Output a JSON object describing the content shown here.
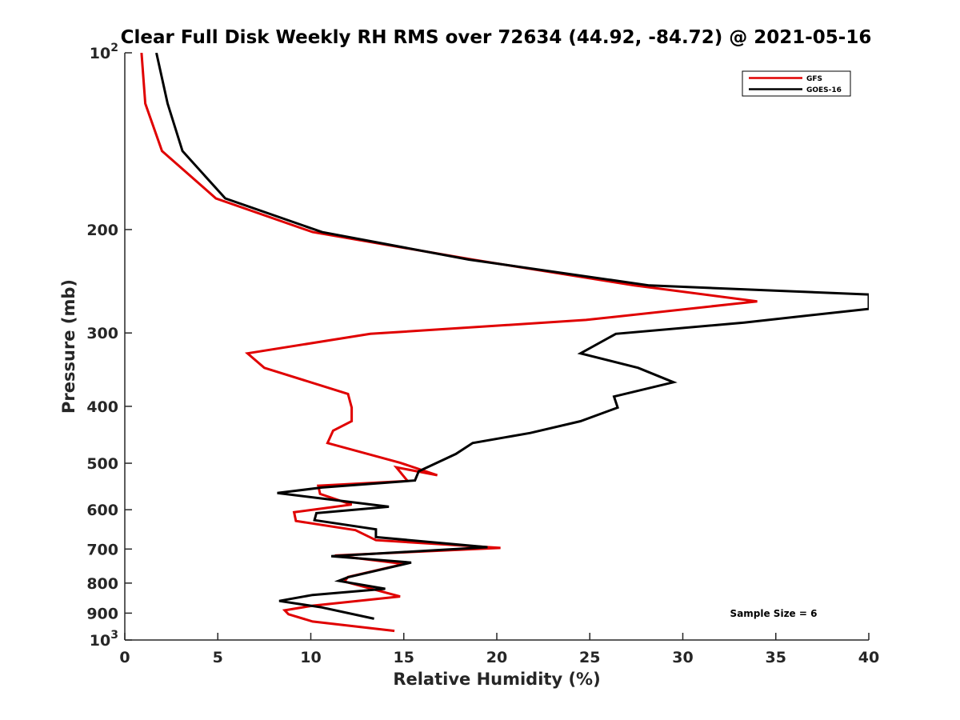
{
  "chart_data": {
    "type": "line",
    "title": "Clear Full Disk Weekly RH RMS over 72634 (44.92, -84.72) @ 2021-05-16",
    "xlabel": "Relative Humidity (%)",
    "ylabel": "Pressure (mb)",
    "xlim": [
      0,
      40
    ],
    "ylim": [
      100,
      1000
    ],
    "yscale": "log",
    "y_reversed": true,
    "x_ticks": [
      0,
      5,
      10,
      15,
      20,
      25,
      30,
      35,
      40
    ],
    "x_tick_labels": [
      "0",
      "5",
      "10",
      "15",
      "20",
      "25",
      "30",
      "35",
      "40"
    ],
    "y_ticks": [
      100,
      200,
      300,
      400,
      500,
      600,
      700,
      800,
      900,
      1000
    ],
    "y_tick_labels": [
      {
        "base": "10",
        "exp": "2"
      },
      {
        "base": "200",
        "exp": ""
      },
      {
        "base": "300",
        "exp": ""
      },
      {
        "base": "400",
        "exp": ""
      },
      {
        "base": "500",
        "exp": ""
      },
      {
        "base": "600",
        "exp": ""
      },
      {
        "base": "700",
        "exp": ""
      },
      {
        "base": "800",
        "exp": ""
      },
      {
        "base": "900",
        "exp": ""
      },
      {
        "base": "10",
        "exp": "3"
      }
    ],
    "legend_position": "top-right",
    "annotation": "Sample Size = 6",
    "series": [
      {
        "name": "GFS",
        "color": "#e00000",
        "x": [
          0.9,
          1.1,
          2.0,
          4.9,
          10.1,
          18.7,
          27.4,
          34.0,
          24.8,
          13.2,
          6.6,
          7.5,
          12.0,
          12.2,
          12.2,
          11.2,
          10.9,
          14.8,
          16.8,
          14.6,
          15.2,
          10.4,
          10.5,
          12.2,
          9.1,
          9.2,
          12.4,
          13.5,
          20.2,
          11.3,
          15.0,
          12.0,
          11.8,
          14.8,
          10.1,
          8.6,
          8.8,
          10.1,
          14.5
        ],
        "y": [
          100,
          122,
          147,
          177,
          202,
          225,
          249,
          265,
          285,
          301,
          325,
          344,
          381,
          402,
          424,
          440,
          462,
          499,
          524,
          508,
          536,
          546,
          564,
          588,
          606,
          627,
          650,
          676,
          697,
          718,
          742,
          781,
          795,
          843,
          874,
          890,
          904,
          930,
          965
        ]
      },
      {
        "name": "GOES-16",
        "color": "#000000",
        "x": [
          1.7,
          2.3,
          3.1,
          5.4,
          10.6,
          18.5,
          28.2,
          40.0,
          40.0,
          33.3,
          26.4,
          24.5,
          27.6,
          29.5,
          26.3,
          26.5,
          24.5,
          21.8,
          18.7,
          17.8,
          15.8,
          15.6,
          10.6,
          8.2,
          14.2,
          10.3,
          10.2,
          13.5,
          13.5,
          19.5,
          11.1,
          15.4,
          12.0,
          11.5,
          14.0,
          10.1,
          8.3,
          10.6,
          13.4
        ],
        "y": [
          100,
          122,
          147,
          177,
          202,
          225,
          249,
          258,
          273,
          288,
          301,
          325,
          344,
          364,
          385,
          402,
          424,
          444,
          462,
          482,
          516,
          535,
          550,
          562,
          593,
          608,
          625,
          648,
          668,
          695,
          720,
          738,
          782,
          793,
          818,
          838,
          858,
          880,
          920
        ]
      }
    ]
  }
}
